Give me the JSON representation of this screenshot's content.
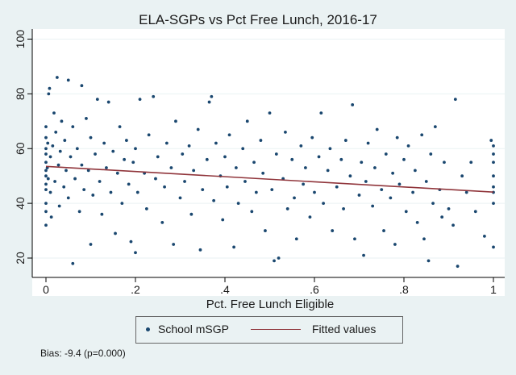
{
  "chart_data": {
    "type": "scatter",
    "title": "ELA-SGPs vs Pct Free Lunch, 2016-17",
    "xlabel": "Pct. Free Lunch Eligible",
    "ylabel": "",
    "xlim": [
      0,
      1
    ],
    "ylim": [
      15,
      100
    ],
    "x_ticks": [
      0,
      0.2,
      0.4,
      0.6,
      0.8,
      1
    ],
    "x_tick_labels": [
      "0",
      ".2",
      ".4",
      ".6",
      ".8",
      "1"
    ],
    "y_ticks": [
      20,
      40,
      60,
      80,
      100
    ],
    "y_tick_labels": [
      "20",
      "40",
      "60",
      "80",
      "100"
    ],
    "grid": true,
    "legend_position": "bottom",
    "series": [
      {
        "name": "School mSGP",
        "kind": "scatter",
        "color": "#1a476f",
        "points": [
          [
            0.0,
            32
          ],
          [
            0.0,
            45
          ],
          [
            0.0,
            52
          ],
          [
            0.0,
            58
          ],
          [
            0.0,
            64
          ],
          [
            0.0,
            40
          ],
          [
            0.0,
            55
          ],
          [
            0.0,
            60
          ],
          [
            0.0,
            47
          ],
          [
            0.0,
            68
          ],
          [
            0.0,
            50
          ],
          [
            0.0,
            37
          ],
          [
            0.003,
            53
          ],
          [
            0.005,
            49
          ],
          [
            0.004,
            62
          ],
          [
            0.006,
            80
          ],
          [
            0.008,
            82
          ],
          [
            0.01,
            44
          ],
          [
            0.01,
            57
          ],
          [
            0.012,
            35
          ],
          [
            0.015,
            61
          ],
          [
            0.018,
            73
          ],
          [
            0.02,
            48
          ],
          [
            0.022,
            66
          ],
          [
            0.025,
            86
          ],
          [
            0.028,
            54
          ],
          [
            0.03,
            39
          ],
          [
            0.032,
            59
          ],
          [
            0.035,
            70
          ],
          [
            0.04,
            46
          ],
          [
            0.042,
            63
          ],
          [
            0.045,
            52
          ],
          [
            0.05,
            85
          ],
          [
            0.05,
            42
          ],
          [
            0.055,
            57
          ],
          [
            0.06,
            18
          ],
          [
            0.06,
            68
          ],
          [
            0.065,
            49
          ],
          [
            0.07,
            60
          ],
          [
            0.075,
            37
          ],
          [
            0.08,
            83
          ],
          [
            0.08,
            54
          ],
          [
            0.085,
            45
          ],
          [
            0.09,
            71
          ],
          [
            0.095,
            52
          ],
          [
            0.1,
            25
          ],
          [
            0.1,
            64
          ],
          [
            0.105,
            43
          ],
          [
            0.11,
            58
          ],
          [
            0.115,
            78
          ],
          [
            0.12,
            48
          ],
          [
            0.125,
            36
          ],
          [
            0.13,
            62
          ],
          [
            0.135,
            53
          ],
          [
            0.14,
            77
          ],
          [
            0.145,
            44
          ],
          [
            0.15,
            59
          ],
          [
            0.155,
            29
          ],
          [
            0.16,
            51
          ],
          [
            0.165,
            68
          ],
          [
            0.17,
            40
          ],
          [
            0.175,
            56
          ],
          [
            0.18,
            63
          ],
          [
            0.185,
            47
          ],
          [
            0.19,
            26
          ],
          [
            0.195,
            55
          ],
          [
            0.2,
            22
          ],
          [
            0.2,
            60
          ],
          [
            0.205,
            44
          ],
          [
            0.21,
            78
          ],
          [
            0.22,
            51
          ],
          [
            0.225,
            38
          ],
          [
            0.23,
            65
          ],
          [
            0.24,
            79
          ],
          [
            0.245,
            49
          ],
          [
            0.25,
            57
          ],
          [
            0.26,
            33
          ],
          [
            0.265,
            46
          ],
          [
            0.27,
            62
          ],
          [
            0.28,
            53
          ],
          [
            0.285,
            25
          ],
          [
            0.29,
            70
          ],
          [
            0.3,
            42
          ],
          [
            0.305,
            58
          ],
          [
            0.31,
            48
          ],
          [
            0.32,
            61
          ],
          [
            0.325,
            36
          ],
          [
            0.33,
            52
          ],
          [
            0.34,
            67
          ],
          [
            0.345,
            23
          ],
          [
            0.35,
            45
          ],
          [
            0.36,
            56
          ],
          [
            0.365,
            77
          ],
          [
            0.37,
            79
          ],
          [
            0.375,
            41
          ],
          [
            0.38,
            62
          ],
          [
            0.39,
            50
          ],
          [
            0.395,
            34
          ],
          [
            0.4,
            57
          ],
          [
            0.405,
            46
          ],
          [
            0.41,
            65
          ],
          [
            0.42,
            24
          ],
          [
            0.425,
            53
          ],
          [
            0.43,
            40
          ],
          [
            0.44,
            60
          ],
          [
            0.445,
            48
          ],
          [
            0.45,
            70
          ],
          [
            0.46,
            37
          ],
          [
            0.465,
            55
          ],
          [
            0.47,
            44
          ],
          [
            0.48,
            63
          ],
          [
            0.485,
            51
          ],
          [
            0.49,
            30
          ],
          [
            0.5,
            73
          ],
          [
            0.505,
            45
          ],
          [
            0.51,
            19
          ],
          [
            0.515,
            58
          ],
          [
            0.52,
            20
          ],
          [
            0.53,
            49
          ],
          [
            0.535,
            66
          ],
          [
            0.54,
            38
          ],
          [
            0.55,
            56
          ],
          [
            0.555,
            42
          ],
          [
            0.56,
            27
          ],
          [
            0.57,
            61
          ],
          [
            0.575,
            47
          ],
          [
            0.58,
            53
          ],
          [
            0.59,
            35
          ],
          [
            0.595,
            64
          ],
          [
            0.6,
            44
          ],
          [
            0.61,
            57
          ],
          [
            0.615,
            73
          ],
          [
            0.62,
            40
          ],
          [
            0.63,
            52
          ],
          [
            0.635,
            60
          ],
          [
            0.64,
            30
          ],
          [
            0.65,
            46
          ],
          [
            0.66,
            56
          ],
          [
            0.665,
            38
          ],
          [
            0.67,
            63
          ],
          [
            0.68,
            50
          ],
          [
            0.685,
            76
          ],
          [
            0.69,
            27
          ],
          [
            0.7,
            43
          ],
          [
            0.705,
            55
          ],
          [
            0.71,
            21
          ],
          [
            0.715,
            48
          ],
          [
            0.72,
            62
          ],
          [
            0.73,
            39
          ],
          [
            0.735,
            53
          ],
          [
            0.74,
            67
          ],
          [
            0.75,
            45
          ],
          [
            0.755,
            30
          ],
          [
            0.76,
            58
          ],
          [
            0.77,
            42
          ],
          [
            0.775,
            51
          ],
          [
            0.78,
            25
          ],
          [
            0.785,
            64
          ],
          [
            0.79,
            47
          ],
          [
            0.8,
            56
          ],
          [
            0.805,
            37
          ],
          [
            0.81,
            61
          ],
          [
            0.82,
            44
          ],
          [
            0.825,
            52
          ],
          [
            0.83,
            33
          ],
          [
            0.84,
            65
          ],
          [
            0.845,
            27
          ],
          [
            0.85,
            48
          ],
          [
            0.855,
            19
          ],
          [
            0.86,
            58
          ],
          [
            0.865,
            40
          ],
          [
            0.87,
            68
          ],
          [
            0.88,
            45
          ],
          [
            0.885,
            35
          ],
          [
            0.89,
            55
          ],
          [
            0.9,
            38
          ],
          [
            0.91,
            32
          ],
          [
            0.915,
            78
          ],
          [
            0.92,
            17
          ],
          [
            0.93,
            50
          ],
          [
            0.94,
            44
          ],
          [
            0.95,
            55
          ],
          [
            0.96,
            37
          ],
          [
            0.98,
            28
          ],
          [
            0.995,
            63
          ],
          [
            1.0,
            24
          ],
          [
            1.0,
            40
          ],
          [
            1.0,
            46
          ],
          [
            1.0,
            50
          ],
          [
            1.0,
            55
          ],
          [
            1.0,
            58
          ],
          [
            1.0,
            61
          ],
          [
            1.0,
            44
          ]
        ]
      },
      {
        "name": "Fitted values",
        "kind": "line",
        "color": "#90353b",
        "x": [
          0,
          1
        ],
        "y": [
          53.5,
          44.1
        ]
      }
    ],
    "annotations": [
      "Bias:  -9.4 (p=0.000)"
    ]
  }
}
